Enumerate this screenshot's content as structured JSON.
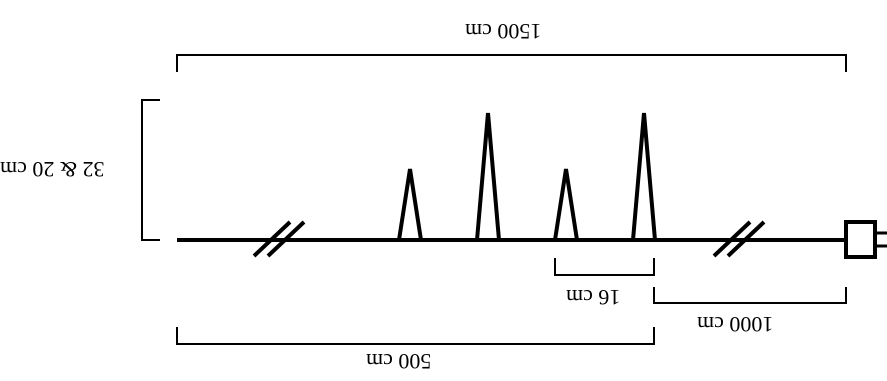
{
  "diagram": {
    "labels": {
      "total_length": "1500 cm",
      "height": "32 & 20 cm",
      "spacing": "16 cm",
      "distance_from_connector": "1000 cm",
      "segment_length": "500 cm"
    },
    "colors": {
      "stroke": "#000000",
      "background": "#ffffff"
    }
  }
}
